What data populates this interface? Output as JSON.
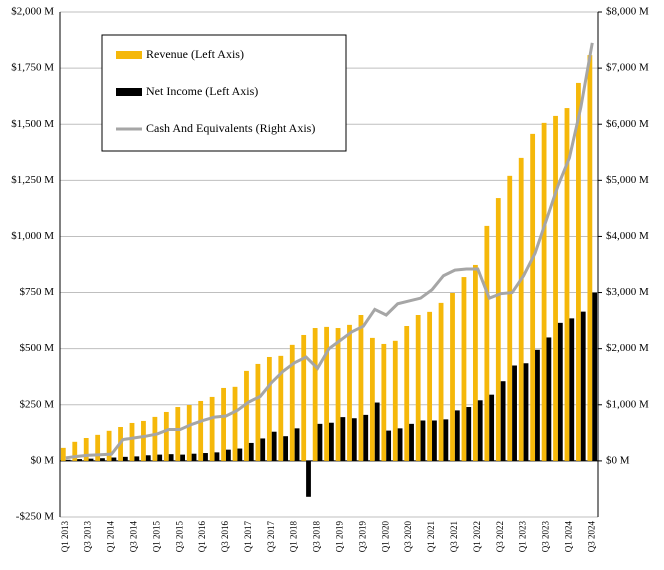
{
  "chart_data": {
    "type": "bar-line",
    "categories": [
      "Q1 2013",
      null,
      "Q3 2013",
      null,
      "Q1 2014",
      null,
      "Q3 2014",
      null,
      "Q1 2015",
      null,
      "Q3 2015",
      null,
      "Q1 2016",
      null,
      "Q3 2016",
      null,
      "Q1 2017",
      null,
      "Q3 2017",
      null,
      "Q1 2018",
      null,
      "Q3 2018",
      null,
      "Q1 2019",
      null,
      "Q3 2019",
      null,
      "Q1 2020",
      null,
      "Q3 2020",
      null,
      "Q1 2021",
      null,
      "Q3 2021",
      null,
      "Q1 2022",
      null,
      "Q3 2022",
      null,
      "Q1 2023",
      null,
      "Q3 2023",
      null,
      "Q1 2024",
      null,
      "Q3 2024"
    ],
    "series": [
      {
        "name": "Revenue (Left Axis)",
        "kind": "bar",
        "color": "#f5b80a",
        "values": [
          58,
          85,
          102,
          116,
          134,
          151,
          169,
          178,
          196,
          218,
          240,
          249,
          267,
          285,
          325,
          330,
          401,
          432,
          463,
          468,
          517,
          561,
          592,
          597,
          592,
          606,
          650,
          548,
          521,
          535,
          601,
          650,
          664,
          704,
          748,
          819,
          873,
          1047,
          1171,
          1270,
          1350,
          1457,
          1506,
          1537,
          1572,
          1684,
          1808
        ]
      },
      {
        "name": "Net Income (Left Axis)",
        "kind": "bar",
        "color": "#000000",
        "values": [
          5,
          8,
          10,
          12,
          15,
          18,
          20,
          25,
          28,
          30,
          28,
          32,
          35,
          38,
          50,
          55,
          80,
          100,
          130,
          110,
          145,
          -160,
          165,
          170,
          195,
          190,
          205,
          260,
          135,
          145,
          165,
          180,
          180,
          185,
          225,
          240,
          270,
          295,
          355,
          425,
          435,
          495,
          550,
          615,
          635,
          665,
          750
        ]
      },
      {
        "name": "Cash And Equivalents (Right Axis)",
        "kind": "line",
        "axis": "y2",
        "color": "#a6a6a6",
        "values": [
          55,
          80,
          100,
          110,
          120,
          380,
          410,
          440,
          480,
          560,
          560,
          650,
          720,
          780,
          800,
          900,
          1050,
          1150,
          1400,
          1600,
          1750,
          1850,
          1650,
          2000,
          2150,
          2300,
          2400,
          2700,
          2600,
          2800,
          2850,
          2900,
          3050,
          3300,
          3400,
          3420,
          3420,
          2900,
          2980,
          3000,
          3300,
          3700,
          4300,
          4900,
          5400,
          6300,
          7450
        ]
      }
    ],
    "ylim": [
      -250,
      2000
    ],
    "yticks": [
      {
        "value": -250,
        "label": "-$250 M"
      },
      {
        "value": 0,
        "label": "$0 M"
      },
      {
        "value": 250,
        "label": "$250 M"
      },
      {
        "value": 500,
        "label": "$500 M"
      },
      {
        "value": 750,
        "label": "$750 M"
      },
      {
        "value": 1000,
        "label": "$1,000 M"
      },
      {
        "value": 1250,
        "label": "$1,250 M"
      },
      {
        "value": 1500,
        "label": "$1,500 M"
      },
      {
        "value": 1750,
        "label": "$1,750 M"
      },
      {
        "value": 2000,
        "label": "$2,000 M"
      }
    ],
    "y2lim": [
      -1000,
      8000
    ],
    "y2ticks": [
      {
        "value": 0,
        "label": "$0 M"
      },
      {
        "value": 1000,
        "label": "$1,000 M"
      },
      {
        "value": 2000,
        "label": "$2,000 M"
      },
      {
        "value": 3000,
        "label": "$3,000 M"
      },
      {
        "value": 4000,
        "label": "$4,000 M"
      },
      {
        "value": 5000,
        "label": "$5,000 M"
      },
      {
        "value": 6000,
        "label": "$6,000 M"
      },
      {
        "value": 7000,
        "label": "$7,000 M"
      },
      {
        "value": 8000,
        "label": "$8,000 M"
      }
    ],
    "grid": true,
    "legend": "upper left"
  }
}
